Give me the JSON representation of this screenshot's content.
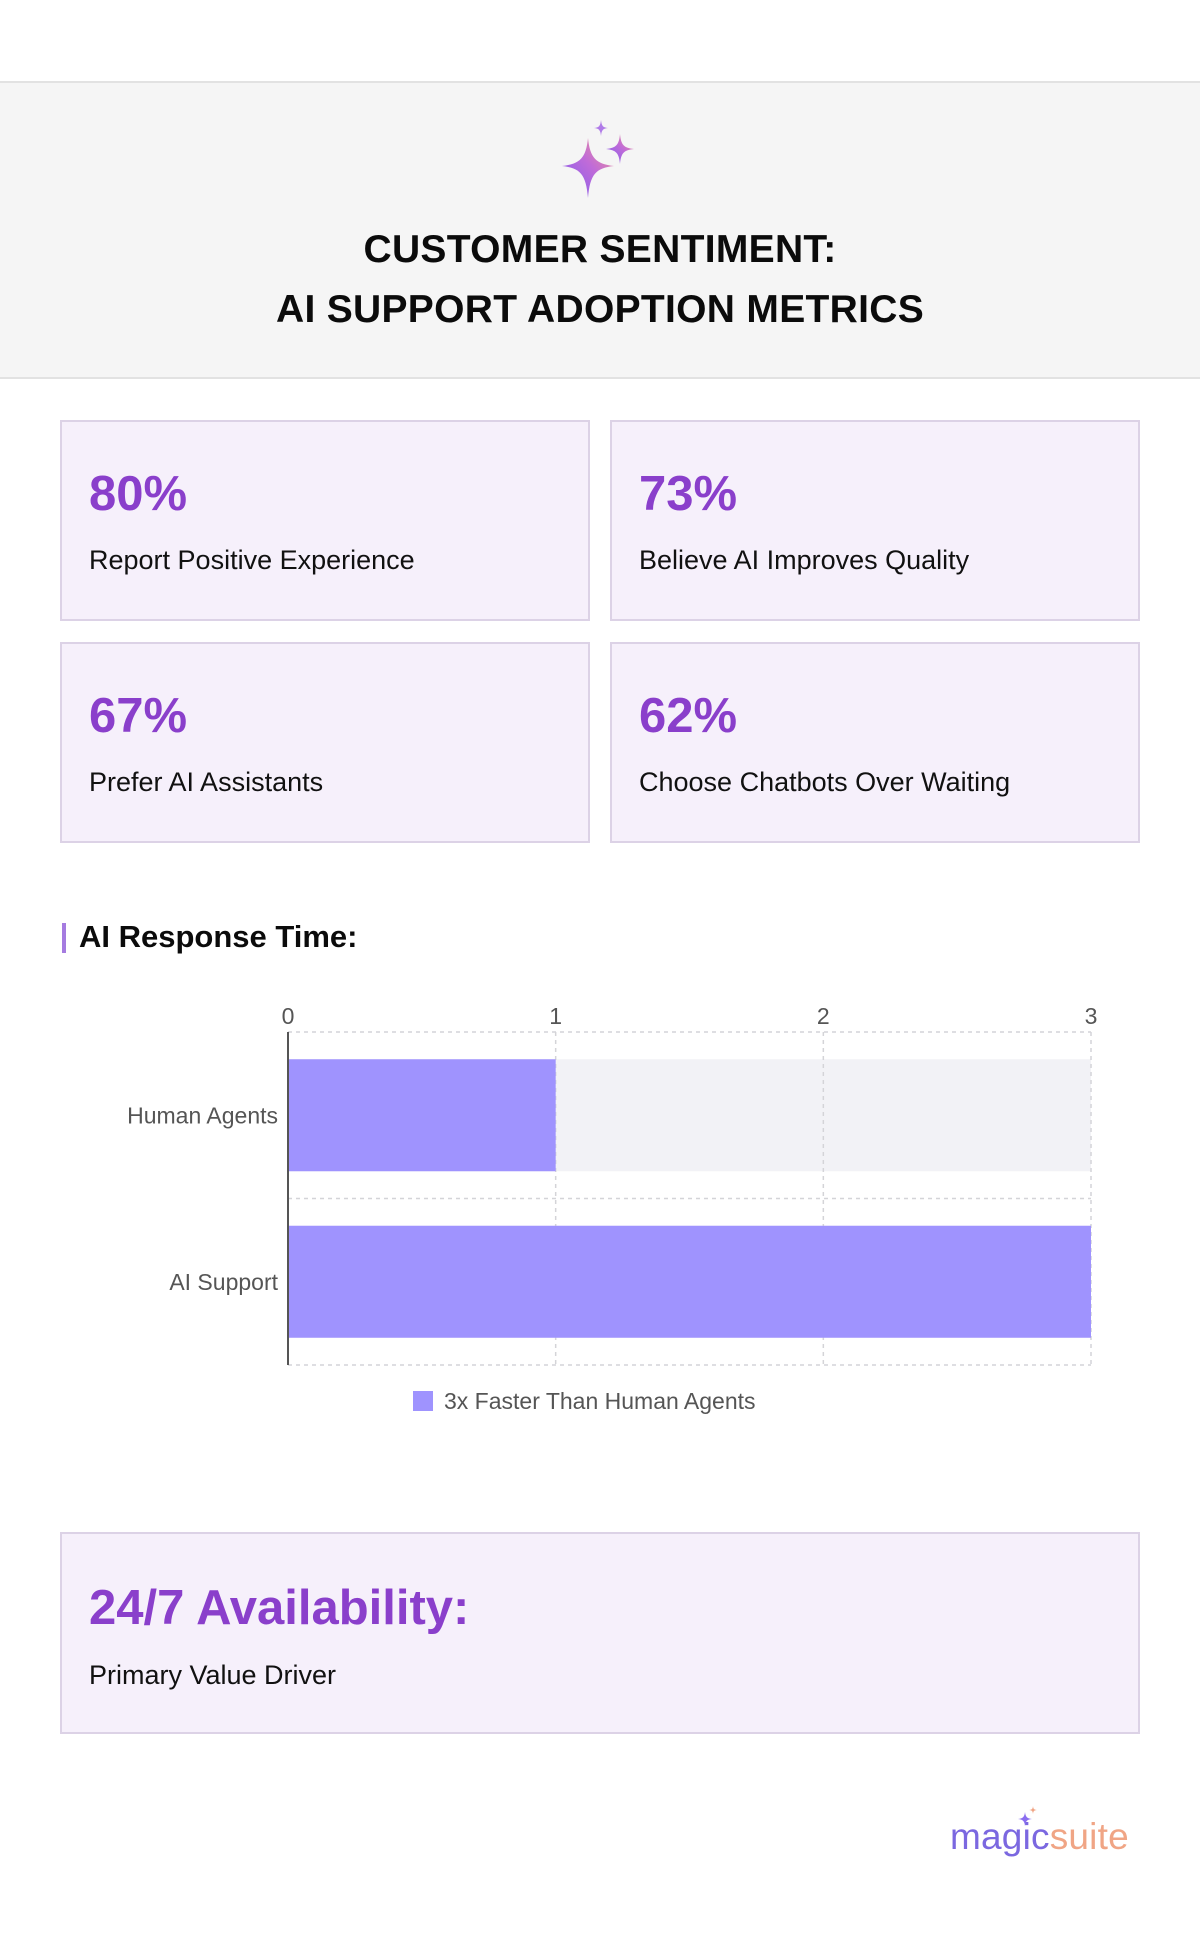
{
  "header": {
    "icon": "sparkle-icon",
    "title_line1": "CUSTOMER SENTIMENT:",
    "title_line2": "AI SUPPORT ADOPTION METRICS"
  },
  "stats": [
    {
      "value": "80%",
      "label": "Report Positive Experience"
    },
    {
      "value": "73%",
      "label": "Believe AI Improves Quality"
    },
    {
      "value": "67%",
      "label": "Prefer AI Assistants"
    },
    {
      "value": "62%",
      "label": "Choose Chatbots Over Waiting"
    }
  ],
  "section": {
    "title": "AI Response Time:"
  },
  "chart_data": {
    "type": "bar",
    "orientation": "horizontal",
    "title": "",
    "xlabel": "",
    "ylabel": "",
    "categories": [
      "Human Agents",
      "AI Support"
    ],
    "series": [
      {
        "name": "3x Faster Than Human Agents",
        "values": [
          1,
          3
        ],
        "color": "#9f93fe"
      }
    ],
    "xlim": [
      0,
      3
    ],
    "x_ticks": [
      "0",
      "1",
      "2",
      "3"
    ],
    "grid": true,
    "legend_position": "bottom-center",
    "track_color": "#f2f2f6"
  },
  "availability": {
    "value": "24/7 Availability:",
    "label": "Primary Value Driver"
  },
  "logo": {
    "part1": "magic",
    "part2": "suite",
    "icon": "sparkle-icon"
  },
  "colors": {
    "accent": "#8a3fcb",
    "card_bg": "#f6f0fb",
    "bar": "#9f93fe"
  }
}
